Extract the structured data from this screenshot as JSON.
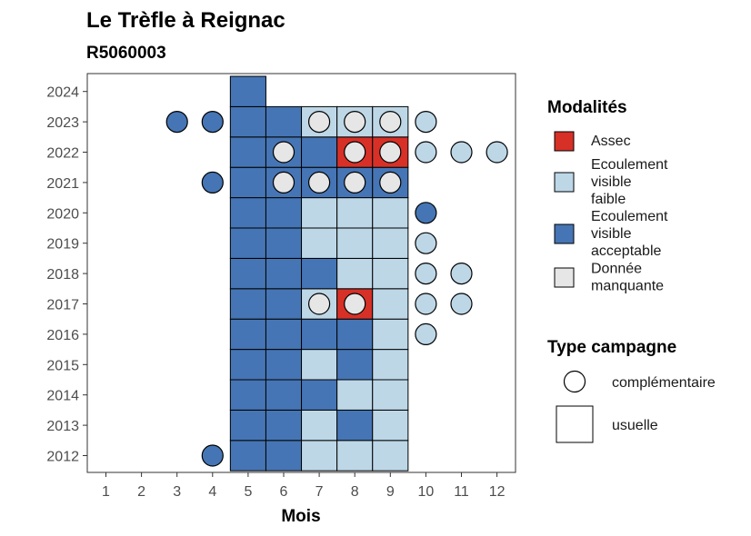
{
  "chart_data": {
    "type": "heatmap",
    "title": "Le Trèfle à Reignac",
    "subtitle": "R5060003",
    "xlabel": "Mois",
    "ylabel": "",
    "x_categories": [
      1,
      2,
      3,
      4,
      5,
      6,
      7,
      8,
      9,
      10,
      11,
      12
    ],
    "y_categories": [
      2012,
      2013,
      2014,
      2015,
      2016,
      2017,
      2018,
      2019,
      2020,
      2021,
      2022,
      2023,
      2024
    ],
    "grid": false,
    "legend_position": "right",
    "modalites": {
      "title": "Modalités",
      "items": [
        {
          "key": "assec",
          "label_lines": [
            "Assec"
          ],
          "color": "#d73027"
        },
        {
          "key": "faible",
          "label_lines": [
            "Ecoulement",
            "visible",
            "faible"
          ],
          "color": "#bdd7e7"
        },
        {
          "key": "acceptable",
          "label_lines": [
            "Ecoulement",
            "visible",
            "acceptable"
          ],
          "color": "#4575b4"
        },
        {
          "key": "manquante",
          "label_lines": [
            "Donnée",
            "manquante"
          ],
          "color": "#e6e6e6"
        }
      ]
    },
    "campagne": {
      "title": "Type campagne",
      "items": [
        {
          "key": "complementaire",
          "label": "complémentaire",
          "shape": "circle"
        },
        {
          "key": "usuelle",
          "label": "usuelle",
          "shape": "square"
        }
      ]
    },
    "tiles": [
      {
        "year": 2012,
        "month": 5,
        "value": "acceptable"
      },
      {
        "year": 2012,
        "month": 6,
        "value": "acceptable"
      },
      {
        "year": 2012,
        "month": 7,
        "value": "faible"
      },
      {
        "year": 2012,
        "month": 8,
        "value": "faible"
      },
      {
        "year": 2012,
        "month": 9,
        "value": "faible"
      },
      {
        "year": 2013,
        "month": 5,
        "value": "acceptable"
      },
      {
        "year": 2013,
        "month": 6,
        "value": "acceptable"
      },
      {
        "year": 2013,
        "month": 7,
        "value": "faible"
      },
      {
        "year": 2013,
        "month": 8,
        "value": "acceptable"
      },
      {
        "year": 2013,
        "month": 9,
        "value": "faible"
      },
      {
        "year": 2014,
        "month": 5,
        "value": "acceptable"
      },
      {
        "year": 2014,
        "month": 6,
        "value": "acceptable"
      },
      {
        "year": 2014,
        "month": 7,
        "value": "acceptable"
      },
      {
        "year": 2014,
        "month": 8,
        "value": "faible"
      },
      {
        "year": 2014,
        "month": 9,
        "value": "faible"
      },
      {
        "year": 2015,
        "month": 5,
        "value": "acceptable"
      },
      {
        "year": 2015,
        "month": 6,
        "value": "acceptable"
      },
      {
        "year": 2015,
        "month": 7,
        "value": "faible"
      },
      {
        "year": 2015,
        "month": 8,
        "value": "acceptable"
      },
      {
        "year": 2015,
        "month": 9,
        "value": "faible"
      },
      {
        "year": 2016,
        "month": 5,
        "value": "acceptable"
      },
      {
        "year": 2016,
        "month": 6,
        "value": "acceptable"
      },
      {
        "year": 2016,
        "month": 7,
        "value": "acceptable"
      },
      {
        "year": 2016,
        "month": 8,
        "value": "acceptable"
      },
      {
        "year": 2016,
        "month": 9,
        "value": "faible"
      },
      {
        "year": 2017,
        "month": 5,
        "value": "acceptable"
      },
      {
        "year": 2017,
        "month": 6,
        "value": "acceptable"
      },
      {
        "year": 2017,
        "month": 7,
        "value": "faible"
      },
      {
        "year": 2017,
        "month": 8,
        "value": "assec"
      },
      {
        "year": 2017,
        "month": 9,
        "value": "faible"
      },
      {
        "year": 2018,
        "month": 5,
        "value": "acceptable"
      },
      {
        "year": 2018,
        "month": 6,
        "value": "acceptable"
      },
      {
        "year": 2018,
        "month": 7,
        "value": "acceptable"
      },
      {
        "year": 2018,
        "month": 8,
        "value": "faible"
      },
      {
        "year": 2018,
        "month": 9,
        "value": "faible"
      },
      {
        "year": 2019,
        "month": 5,
        "value": "acceptable"
      },
      {
        "year": 2019,
        "month": 6,
        "value": "acceptable"
      },
      {
        "year": 2019,
        "month": 7,
        "value": "faible"
      },
      {
        "year": 2019,
        "month": 8,
        "value": "faible"
      },
      {
        "year": 2019,
        "month": 9,
        "value": "faible"
      },
      {
        "year": 2020,
        "month": 5,
        "value": "acceptable"
      },
      {
        "year": 2020,
        "month": 6,
        "value": "acceptable"
      },
      {
        "year": 2020,
        "month": 7,
        "value": "faible"
      },
      {
        "year": 2020,
        "month": 8,
        "value": "faible"
      },
      {
        "year": 2020,
        "month": 9,
        "value": "faible"
      },
      {
        "year": 2021,
        "month": 5,
        "value": "acceptable"
      },
      {
        "year": 2021,
        "month": 6,
        "value": "acceptable"
      },
      {
        "year": 2021,
        "month": 7,
        "value": "acceptable"
      },
      {
        "year": 2021,
        "month": 8,
        "value": "acceptable"
      },
      {
        "year": 2021,
        "month": 9,
        "value": "acceptable"
      },
      {
        "year": 2022,
        "month": 5,
        "value": "acceptable"
      },
      {
        "year": 2022,
        "month": 6,
        "value": "acceptable"
      },
      {
        "year": 2022,
        "month": 7,
        "value": "acceptable"
      },
      {
        "year": 2022,
        "month": 8,
        "value": "assec"
      },
      {
        "year": 2022,
        "month": 9,
        "value": "assec"
      },
      {
        "year": 2023,
        "month": 5,
        "value": "acceptable"
      },
      {
        "year": 2023,
        "month": 6,
        "value": "acceptable"
      },
      {
        "year": 2023,
        "month": 7,
        "value": "faible"
      },
      {
        "year": 2023,
        "month": 8,
        "value": "faible"
      },
      {
        "year": 2023,
        "month": 9,
        "value": "faible"
      },
      {
        "year": 2024,
        "month": 5,
        "value": "acceptable"
      }
    ],
    "points": [
      {
        "year": 2012,
        "month": 4,
        "value": "acceptable"
      },
      {
        "year": 2016,
        "month": 10,
        "value": "faible"
      },
      {
        "year": 2017,
        "month": 7,
        "value": "manquante"
      },
      {
        "year": 2017,
        "month": 8,
        "value": "manquante"
      },
      {
        "year": 2017,
        "month": 10,
        "value": "faible"
      },
      {
        "year": 2017,
        "month": 11,
        "value": "faible"
      },
      {
        "year": 2018,
        "month": 10,
        "value": "faible"
      },
      {
        "year": 2018,
        "month": 11,
        "value": "faible"
      },
      {
        "year": 2019,
        "month": 10,
        "value": "faible"
      },
      {
        "year": 2020,
        "month": 10,
        "value": "acceptable"
      },
      {
        "year": 2021,
        "month": 4,
        "value": "acceptable"
      },
      {
        "year": 2021,
        "month": 6,
        "value": "manquante"
      },
      {
        "year": 2021,
        "month": 7,
        "value": "manquante"
      },
      {
        "year": 2021,
        "month": 8,
        "value": "manquante"
      },
      {
        "year": 2021,
        "month": 9,
        "value": "manquante"
      },
      {
        "year": 2022,
        "month": 6,
        "value": "manquante"
      },
      {
        "year": 2022,
        "month": 8,
        "value": "manquante"
      },
      {
        "year": 2022,
        "month": 9,
        "value": "manquante"
      },
      {
        "year": 2022,
        "month": 10,
        "value": "faible"
      },
      {
        "year": 2022,
        "month": 11,
        "value": "faible"
      },
      {
        "year": 2022,
        "month": 12,
        "value": "faible"
      },
      {
        "year": 2023,
        "month": 3,
        "value": "acceptable"
      },
      {
        "year": 2023,
        "month": 4,
        "value": "acceptable"
      },
      {
        "year": 2023,
        "month": 7,
        "value": "manquante"
      },
      {
        "year": 2023,
        "month": 8,
        "value": "manquante"
      },
      {
        "year": 2023,
        "month": 9,
        "value": "manquante"
      },
      {
        "year": 2023,
        "month": 10,
        "value": "faible"
      }
    ]
  }
}
